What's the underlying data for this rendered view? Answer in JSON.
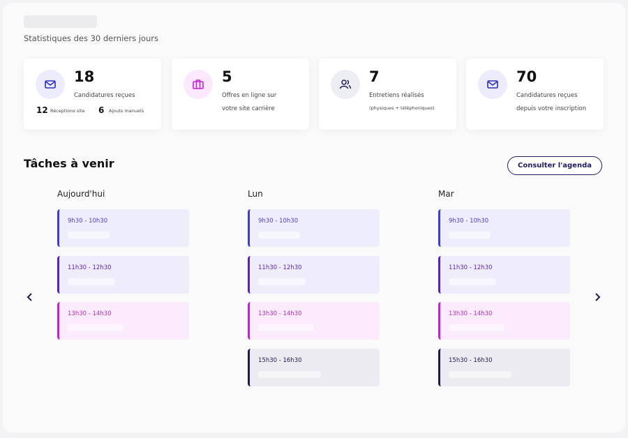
{
  "header": {
    "subtitle": "Statistiques des 30 derniers jours"
  },
  "stats": [
    {
      "value": 18,
      "lines": [
        "Candidatures reçues"
      ],
      "details": [
        {
          "value": 12,
          "label": "Réceptions site"
        },
        {
          "value": 6,
          "label": "Ajouts manuels"
        }
      ]
    },
    {
      "value": 5,
      "lines": [
        "Offres en ligne sur",
        "votre site carrière"
      ]
    },
    {
      "value": 7,
      "lines": [
        "Entretiens réalisés",
        "(physiques + téléphoniques)"
      ]
    },
    {
      "value": 70,
      "lines": [
        "Candidatures reçues",
        "depuis votre inscription"
      ]
    }
  ],
  "tasks": {
    "title": "Tâches à venir",
    "button": "Consulter l'agenda",
    "days": [
      {
        "name": "Aujourd'hui",
        "slots": [
          "9h30 - 10h30",
          "11h30 - 12h30",
          "13h30 - 14h30"
        ]
      },
      {
        "name": "Lun",
        "slots": [
          "9h30 - 10h30",
          "11h30 - 12h30",
          "13h30 - 14h30",
          "15h30 - 16h30"
        ]
      },
      {
        "name": "Mar",
        "slots": [
          "9h30 - 10h30",
          "11h30 - 12h30",
          "13h30 - 14h30",
          "15h30 - 16h30"
        ]
      }
    ]
  }
}
